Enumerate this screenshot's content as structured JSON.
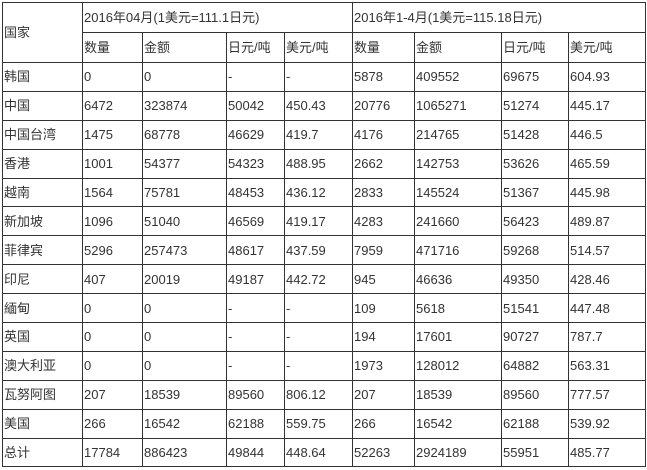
{
  "table": {
    "country_header": "国家",
    "group_headers": [
      "2016年04月(1美元=111.1日元)",
      "2016年1-4月(1美元=115.18日元)"
    ],
    "sub_headers": [
      "数量",
      "金额",
      "日元/吨",
      "美元/吨",
      "数量",
      "金额",
      "日元/吨",
      "美元/吨"
    ],
    "rows": [
      [
        "韩国",
        "0",
        "0",
        "-",
        "-",
        "5878",
        "409552",
        "69675",
        "604.93"
      ],
      [
        "中国",
        "6472",
        "323874",
        "50042",
        "450.43",
        "20776",
        "1065271",
        "51274",
        "445.17"
      ],
      [
        "中国台湾",
        "1475",
        "68778",
        "46629",
        "419.7",
        "4176",
        "214765",
        "51428",
        "446.5"
      ],
      [
        "香港",
        "1001",
        "54377",
        "54323",
        "488.95",
        "2662",
        "142753",
        "53626",
        "465.59"
      ],
      [
        "越南",
        "1564",
        "75781",
        "48453",
        "436.12",
        "2833",
        "145524",
        "51367",
        "445.98"
      ],
      [
        "新加坡",
        "1096",
        "51040",
        "46569",
        "419.17",
        "4283",
        "241660",
        "56423",
        "489.87"
      ],
      [
        "菲律宾",
        "5296",
        "257473",
        "48617",
        "437.59",
        "7959",
        "471716",
        "59268",
        "514.57"
      ],
      [
        "印尼",
        "407",
        "20019",
        "49187",
        "442.72",
        "945",
        "46636",
        "49350",
        "428.46"
      ],
      [
        "緬甸",
        "0",
        "0",
        "-",
        "-",
        "109",
        "5618",
        "51541",
        "447.48"
      ],
      [
        "英国",
        "0",
        "0",
        "-",
        "-",
        "194",
        "17601",
        "90727",
        "787.7"
      ],
      [
        "澳大利亚",
        "0",
        "0",
        "-",
        "-",
        "1973",
        "128012",
        "64882",
        "563.31"
      ],
      [
        "瓦努阿图",
        "207",
        "18539",
        "89560",
        "806.12",
        "207",
        "18539",
        "89560",
        "777.57"
      ],
      [
        "美国",
        "266",
        "16542",
        "62188",
        "559.75",
        "266",
        "16542",
        "62188",
        "539.92"
      ],
      [
        "总计",
        "17784",
        "886423",
        "49844",
        "448.64",
        "52263",
        "2924189",
        "55951",
        "485.77"
      ]
    ]
  }
}
